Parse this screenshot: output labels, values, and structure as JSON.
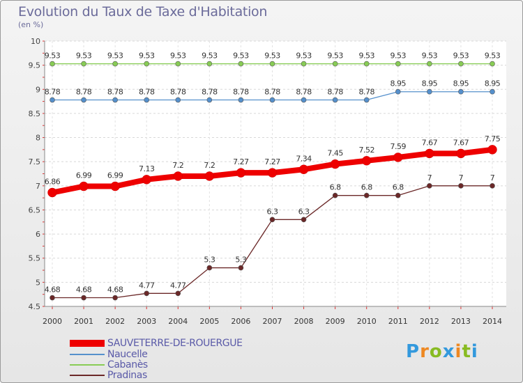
{
  "chart_data": {
    "type": "line",
    "title": "Evolution du Taux de Taxe d'Habitation",
    "subtitle": "(en %)",
    "x": [
      "2000",
      "2001",
      "2002",
      "2003",
      "2004",
      "2005",
      "2006",
      "2007",
      "2008",
      "2009",
      "2010",
      "2011",
      "2012",
      "2013",
      "2014"
    ],
    "ylim": [
      4.5,
      10
    ],
    "yticks": [
      "4.5",
      "5",
      "5.5",
      "6",
      "6.5",
      "7",
      "7.5",
      "8",
      "8.5",
      "9",
      "9.5",
      "10"
    ],
    "grid": true,
    "series": [
      {
        "name": "Cabanès",
        "color": "#88cc55",
        "values": [
          9.53,
          9.53,
          9.53,
          9.53,
          9.53,
          9.53,
          9.53,
          9.53,
          9.53,
          9.53,
          9.53,
          9.53,
          9.53,
          9.53,
          9.53
        ],
        "labels": [
          "9.53",
          "9.53",
          "9.53",
          "9.53",
          "9.53",
          "9.53",
          "9.53",
          "9.53",
          "9.53",
          "9.53",
          "9.53",
          "9.53",
          "9.53",
          "9.53",
          "9.53"
        ]
      },
      {
        "name": "Naucelle",
        "color": "#5590cc",
        "values": [
          8.78,
          8.78,
          8.78,
          8.78,
          8.78,
          8.78,
          8.78,
          8.78,
          8.78,
          8.78,
          8.78,
          8.95,
          8.95,
          8.95,
          8.95
        ],
        "labels": [
          "8.78",
          "8.78",
          "8.78",
          "8.78",
          "8.78",
          "8.78",
          "8.78",
          "8.78",
          "8.78",
          "8.78",
          "8.78",
          "8.95",
          "8.95",
          "8.95",
          "8.95"
        ]
      },
      {
        "name": "Pradinas",
        "color": "#6b2828",
        "values": [
          4.68,
          4.68,
          4.68,
          4.77,
          4.77,
          5.3,
          5.3,
          6.3,
          6.3,
          6.8,
          6.8,
          6.8,
          7,
          7,
          7
        ],
        "labels": [
          "4.68",
          "4.68",
          "4.68",
          "4.77",
          "4.77",
          "5.3",
          "5.3",
          "6.3",
          "6.3",
          "6.8",
          "6.8",
          "6.8",
          "7",
          "7",
          "7"
        ]
      },
      {
        "name": "SAUVETERRE-DE-ROUERGUE",
        "color": "#ee0000",
        "values": [
          6.86,
          6.99,
          6.99,
          7.13,
          7.2,
          7.2,
          7.27,
          7.27,
          7.34,
          7.45,
          7.52,
          7.59,
          7.67,
          7.67,
          7.75
        ],
        "labels": [
          "6.86",
          "6.99",
          "6.99",
          "7.13",
          "7.2",
          "7.2",
          "7.27",
          "7.27",
          "7.34",
          "7.45",
          "7.52",
          "7.59",
          "7.67",
          "7.67",
          "7.75"
        ]
      }
    ],
    "legend": [
      {
        "name": "SAUVETERRE-DE-ROUERGUE",
        "color": "#ee0000"
      },
      {
        "name": "Naucelle",
        "color": "#5590cc"
      },
      {
        "name": "Cabanès",
        "color": "#88cc55"
      },
      {
        "name": "Pradinas",
        "color": "#6b2828"
      }
    ]
  },
  "logo": {
    "letters": [
      "P",
      "r",
      "o",
      "x",
      "i",
      "t",
      "i"
    ],
    "colors": [
      "#3399dd",
      "#ee8822",
      "#88bb22",
      "#3399dd",
      "#ee8822",
      "#88bb22",
      "#3399dd"
    ]
  }
}
